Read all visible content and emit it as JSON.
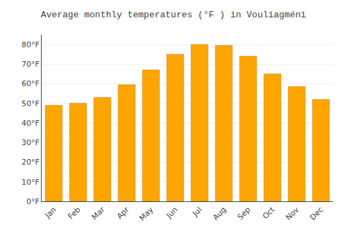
{
  "chart_data": {
    "type": "bar",
    "title": "Average monthly temperatures (°F ) in Vouliagméni",
    "categories": [
      "Jan",
      "Feb",
      "Mar",
      "Apr",
      "May",
      "Jun",
      "Jul",
      "Aug",
      "Sep",
      "Oct",
      "Nov",
      "Dec"
    ],
    "values": [
      49,
      50,
      53,
      59.5,
      67,
      75,
      80,
      79.5,
      74,
      65,
      58.5,
      52
    ],
    "color": "#FFA500",
    "ylim": [
      0,
      85
    ],
    "yticks": [
      {
        "value": 0,
        "label": "0°F"
      },
      {
        "value": 10,
        "label": "10°F"
      },
      {
        "value": 20,
        "label": "20°F"
      },
      {
        "value": 30,
        "label": "30°F"
      },
      {
        "value": 40,
        "label": "40°F"
      },
      {
        "value": 50,
        "label": "50°F"
      },
      {
        "value": 60,
        "label": "60°F"
      },
      {
        "value": 70,
        "label": "70°F"
      },
      {
        "value": 80,
        "label": "80°F"
      }
    ],
    "grid": true
  }
}
